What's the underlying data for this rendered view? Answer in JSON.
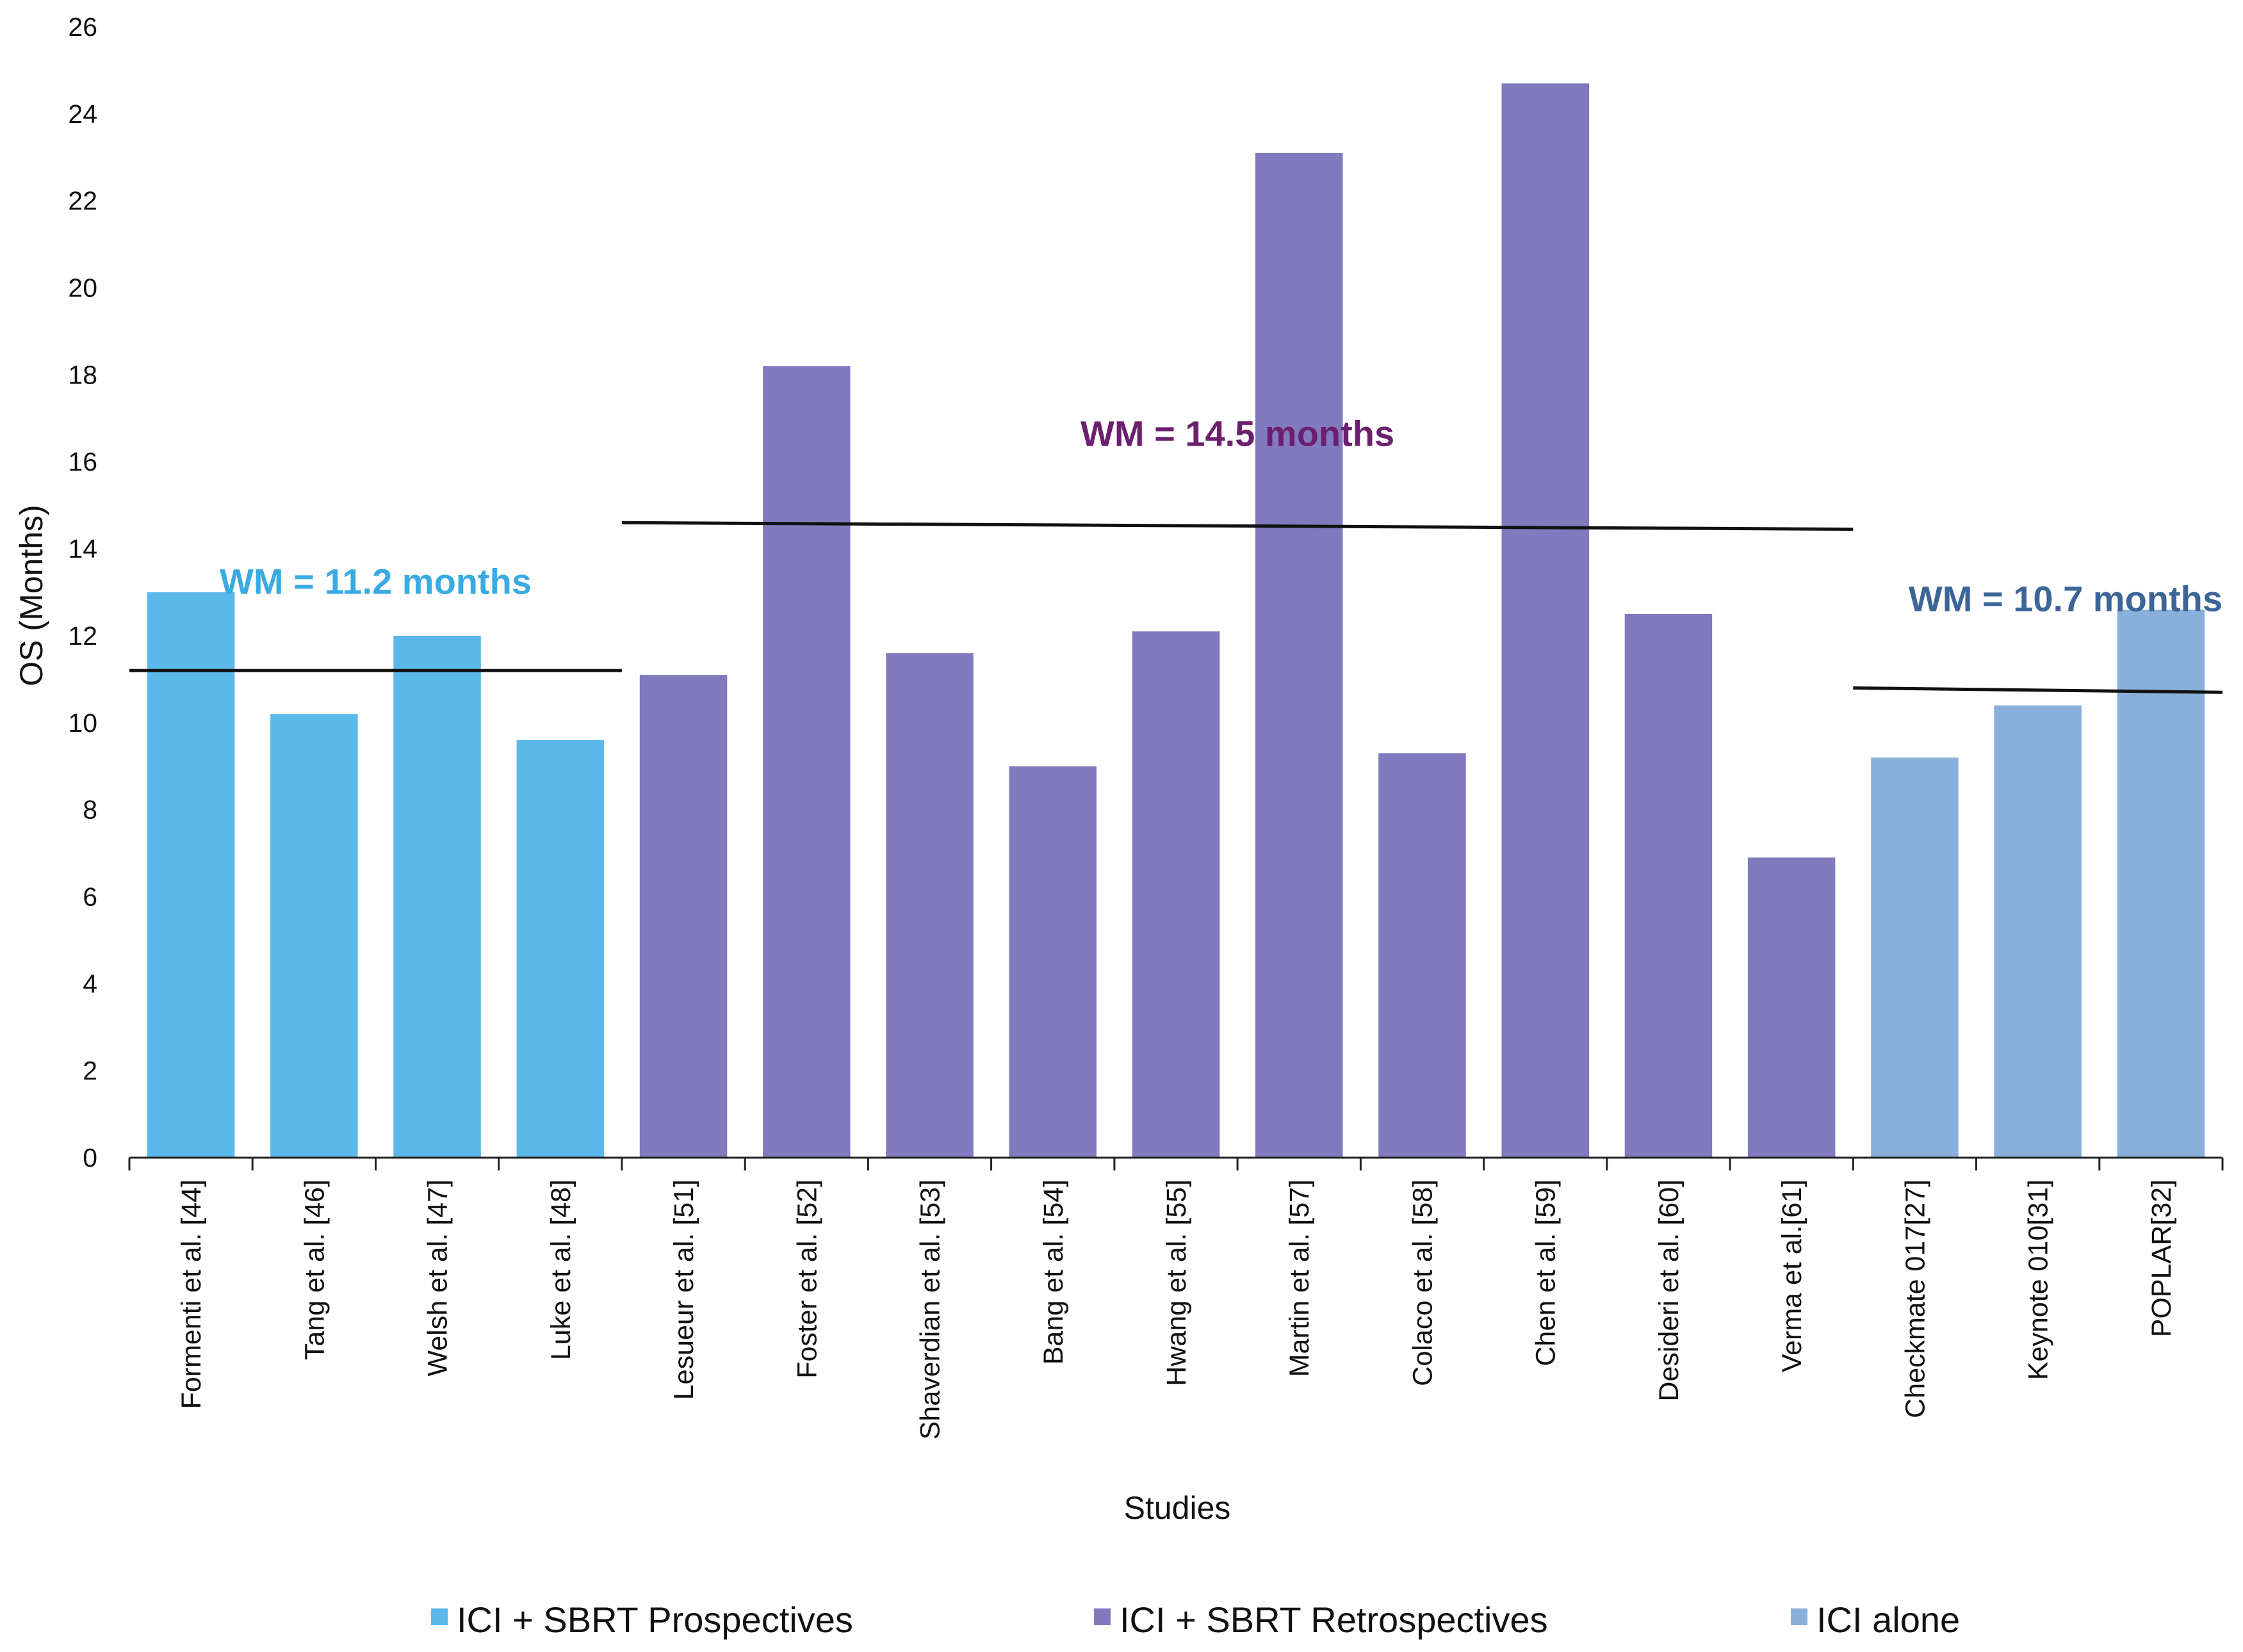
{
  "chart_data": {
    "type": "bar",
    "title": "",
    "xlabel": "Studies",
    "ylabel": "OS (Months)",
    "ylim": [
      0,
      26
    ],
    "yticks": [
      0,
      2,
      4,
      6,
      8,
      10,
      12,
      14,
      16,
      18,
      20,
      22,
      24,
      26
    ],
    "grid": false,
    "categories": [
      "Formenti et al. [44]",
      "Tang et al. [46]",
      "Welsh et al. [47]",
      "Luke et al. [48]",
      "Lesueur et al. [51]",
      "Foster et al. [52]",
      "Shaverdian et al. [53]",
      "Bang et al. [54]",
      "Hwang et al. [55]",
      "Martin et al. [57]",
      "Colaco et al. [58]",
      "Chen et al. [59]",
      "Desideri et al. [60]",
      "Verma et al.[61]",
      "Checkmate 017[27]",
      "Keynote 010[31]",
      "POPLAR[32]"
    ],
    "values": [
      13.0,
      10.2,
      12.0,
      9.6,
      11.1,
      18.2,
      11.6,
      9.0,
      12.1,
      23.1,
      9.3,
      24.7,
      12.5,
      6.9,
      9.2,
      10.4,
      12.6
    ],
    "groups": [
      0,
      0,
      0,
      0,
      1,
      1,
      1,
      1,
      1,
      1,
      1,
      1,
      1,
      1,
      2,
      2,
      2
    ],
    "series": [
      {
        "name": "ICI + SBRT Prospectives",
        "color": "#5BB8EA"
      },
      {
        "name": "ICI + SBRT Retrospectives",
        "color": "#817ABF"
      },
      {
        "name": "ICI alone",
        "color": "#89B0DA"
      }
    ],
    "weighted_means": [
      {
        "label": "WM = 11.2 months",
        "from": 0,
        "to": 3,
        "start_value": 11.2,
        "end_value": 11.2,
        "color": "#3AABE2"
      },
      {
        "label": "WM = 14.5 months",
        "from": 4,
        "to": 13,
        "start_value": 14.6,
        "end_value": 14.45,
        "color": "#6B1F6E"
      },
      {
        "label": "WM = 10.7 months",
        "from": 14,
        "to": 16,
        "start_value": 10.8,
        "end_value": 10.7,
        "color": "#3C6598"
      }
    ],
    "legend_position": "bottom"
  }
}
